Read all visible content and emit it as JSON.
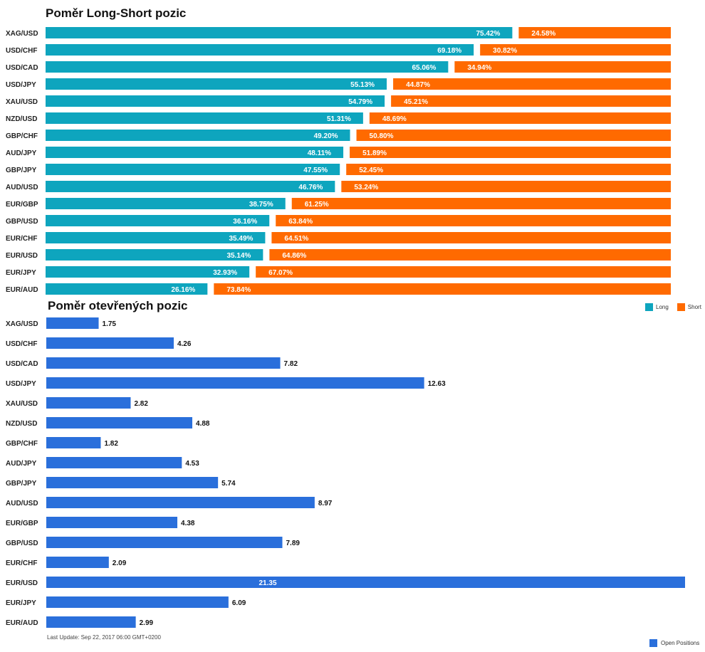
{
  "colors": {
    "long": "#0ea5be",
    "short": "#ff6a00",
    "open": "#2a6fdb"
  },
  "chart_data": [
    {
      "type": "bar",
      "title": "Poměr Long-Short pozic",
      "categories": [
        "XAG/USD",
        "USD/CHF",
        "USD/CAD",
        "USD/JPY",
        "XAU/USD",
        "NZD/USD",
        "GBP/CHF",
        "AUD/JPY",
        "GBP/JPY",
        "AUD/USD",
        "EUR/GBP",
        "GBP/USD",
        "EUR/CHF",
        "EUR/USD",
        "EUR/JPY",
        "EUR/AUD"
      ],
      "series": [
        {
          "name": "Long",
          "values": [
            75.42,
            69.18,
            65.06,
            55.13,
            54.79,
            51.31,
            49.2,
            48.11,
            47.55,
            46.76,
            38.75,
            36.16,
            35.49,
            35.14,
            32.93,
            26.16
          ],
          "labels": [
            "75.42%",
            "69.18%",
            "65.06%",
            "55.13%",
            "54.79%",
            "51.31%",
            "49.20%",
            "48.11%",
            "47.55%",
            "46.76%",
            "38.75%",
            "36.16%",
            "35.49%",
            "35.14%",
            "32.93%",
            "26.16%"
          ]
        },
        {
          "name": "Short",
          "values": [
            24.58,
            30.82,
            34.94,
            44.87,
            45.21,
            48.69,
            50.8,
            51.89,
            52.45,
            53.24,
            61.25,
            63.84,
            64.51,
            64.86,
            67.07,
            73.84
          ],
          "labels": [
            "24.58%",
            "30.82%",
            "34.94%",
            "44.87%",
            "45.21%",
            "48.69%",
            "50.80%",
            "51.89%",
            "52.45%",
            "53.24%",
            "61.25%",
            "63.84%",
            "64.51%",
            "64.86%",
            "67.07%",
            "73.84%"
          ]
        }
      ],
      "stacked": true,
      "legend": "top-right"
    },
    {
      "type": "bar",
      "title": "Poměr otevřených pozic",
      "categories": [
        "XAG/USD",
        "USD/CHF",
        "USD/CAD",
        "USD/JPY",
        "XAU/USD",
        "NZD/USD",
        "GBP/CHF",
        "AUD/JPY",
        "GBP/JPY",
        "AUD/USD",
        "EUR/GBP",
        "GBP/USD",
        "EUR/CHF",
        "EUR/USD",
        "EUR/JPY",
        "EUR/AUD"
      ],
      "series": [
        {
          "name": "Open Positions",
          "values": [
            1.75,
            4.26,
            7.82,
            12.63,
            2.82,
            4.88,
            1.82,
            4.53,
            5.74,
            8.97,
            4.38,
            7.89,
            2.09,
            21.35,
            6.09,
            2.99
          ],
          "labels": [
            "1.75",
            "4.26",
            "7.82",
            "12.63",
            "2.82",
            "4.88",
            "1.82",
            "4.53",
            "5.74",
            "8.97",
            "4.38",
            "7.89",
            "2.09",
            "21.35",
            "6.09",
            "2.99"
          ]
        }
      ],
      "legend": "bottom-right"
    }
  ],
  "legend_top": {
    "long": "Long",
    "short": "Short"
  },
  "legend_bottom": {
    "open": "Open Positions"
  },
  "footer": "Last Update: Sep 22, 2017 06:00 GMT+0200"
}
